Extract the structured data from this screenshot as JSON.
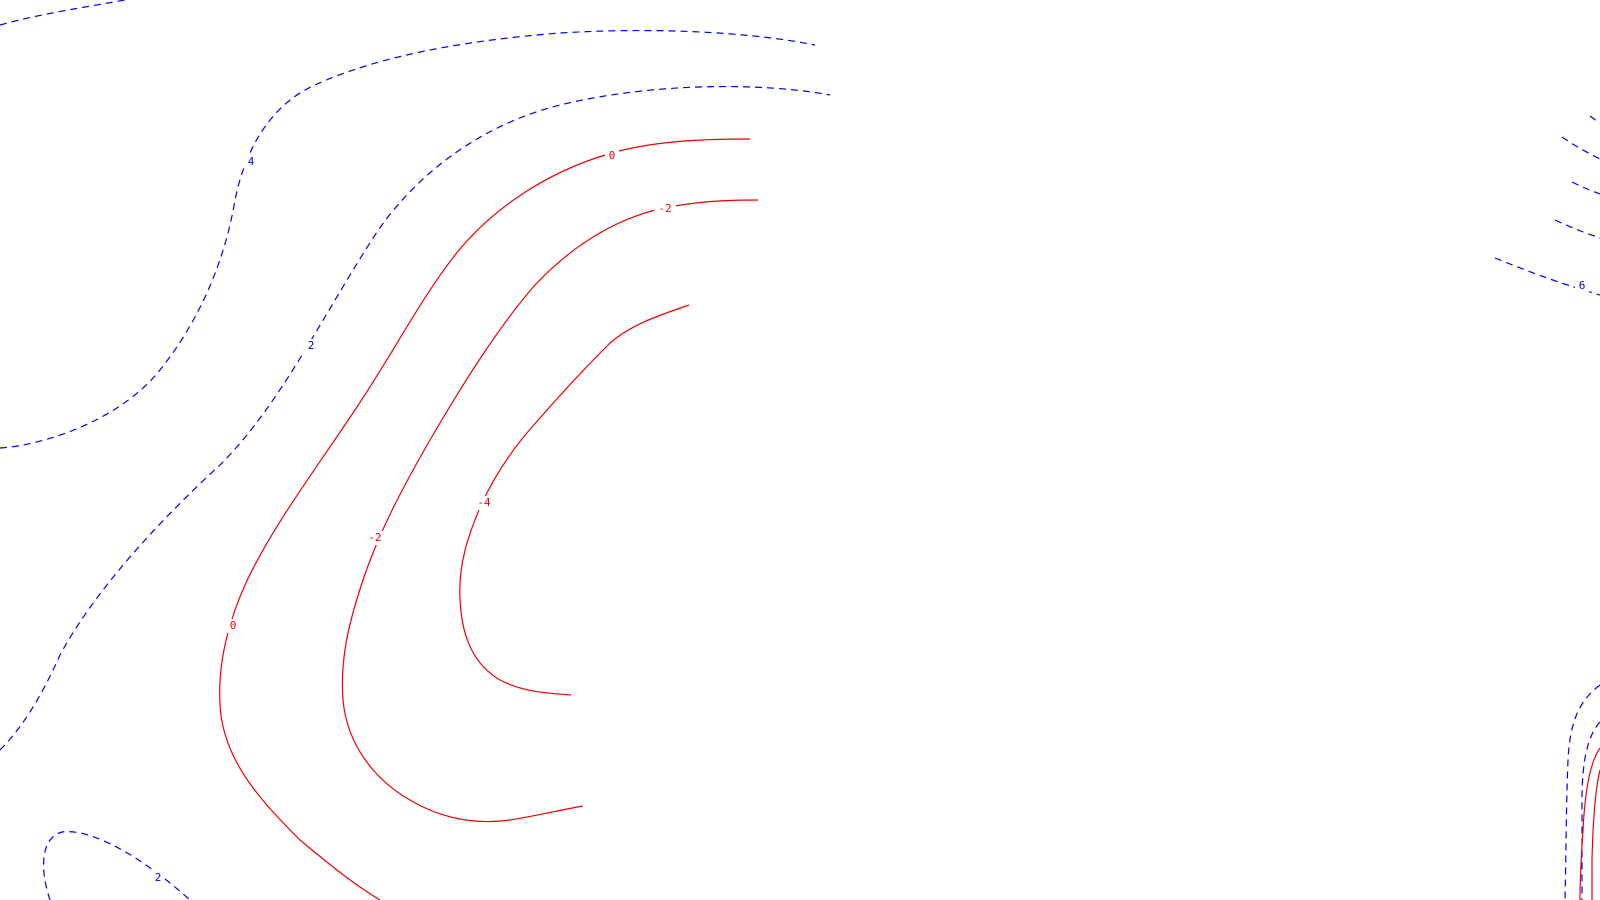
{
  "colors": {
    "background": "#ffffff",
    "positive_contour": "#0000ee",
    "negative_contour": "#ee0000"
  },
  "contour_styles": {
    "positive": "dashed",
    "negative": "solid"
  },
  "contours": [
    {
      "id": "pos-top-left",
      "level": 4
    },
    {
      "id": "pos-top-band",
      "level": 4
    },
    {
      "id": "pos-four",
      "level": 4
    },
    {
      "id": "pos-two",
      "level": 2
    },
    {
      "id": "pos-bottom-left",
      "level": 2
    },
    {
      "id": "pos-right-six",
      "level": 6
    },
    {
      "id": "pos-right-bottom",
      "level": 2
    },
    {
      "id": "neg-zero",
      "level": 0
    },
    {
      "id": "neg-minus-two",
      "level": -2
    },
    {
      "id": "neg-minus-four",
      "level": -4
    }
  ],
  "labels": [
    {
      "id": "label-4",
      "text": "4",
      "kind": "positive"
    },
    {
      "id": "label-2-upper",
      "text": "2",
      "kind": "positive"
    },
    {
      "id": "label-2-lower",
      "text": "2",
      "kind": "positive"
    },
    {
      "id": "label-6",
      "text": "6",
      "kind": "positive"
    },
    {
      "id": "label-0-top",
      "text": "0",
      "kind": "negative"
    },
    {
      "id": "label-0-left",
      "text": "0",
      "kind": "negative"
    },
    {
      "id": "label-neg2-top",
      "text": "-2",
      "kind": "negative"
    },
    {
      "id": "label-neg2-left",
      "text": "-2",
      "kind": "negative"
    },
    {
      "id": "label-neg4",
      "text": "-4",
      "kind": "negative"
    }
  ]
}
